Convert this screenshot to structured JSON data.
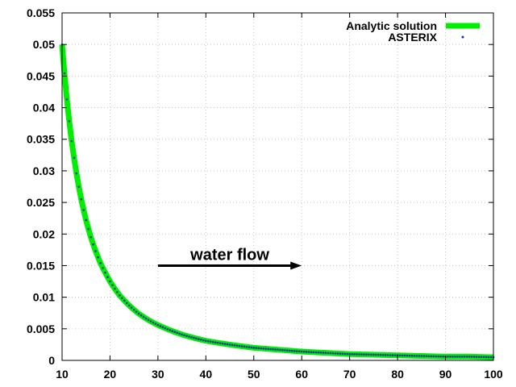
{
  "chart_data": {
    "type": "line",
    "title": "",
    "xlabel": "",
    "ylabel": "",
    "xlim": [
      10,
      100
    ],
    "ylim": [
      0,
      0.055
    ],
    "x_ticks": [
      10,
      20,
      30,
      40,
      50,
      60,
      70,
      80,
      90,
      100
    ],
    "y_ticks": [
      0,
      0.005,
      0.01,
      0.015,
      0.02,
      0.025,
      0.03,
      0.035,
      0.04,
      0.045,
      0.05,
      0.055
    ],
    "x_tick_labels": [
      "10",
      "20",
      "30",
      "40",
      "50",
      "60",
      "70",
      "80",
      "90",
      "100"
    ],
    "y_tick_labels": [
      "0",
      "0.005",
      "0.01",
      "0.015",
      "0.02",
      "0.025",
      "0.03",
      "0.035",
      "0.04",
      "0.045",
      "0.05",
      "0.055"
    ],
    "grid": true,
    "legend_position": "top-right",
    "series": [
      {
        "name": "Analytic solution",
        "style": "line",
        "color": "#00ee00",
        "x": [
          10,
          11,
          12,
          13,
          14,
          15,
          16,
          17,
          18,
          19,
          20,
          22,
          24,
          26,
          28,
          30,
          35,
          40,
          45,
          50,
          55,
          60,
          65,
          70,
          75,
          80,
          85,
          90,
          95,
          100
        ],
        "y": [
          0.05,
          0.0413,
          0.0347,
          0.0296,
          0.0255,
          0.0222,
          0.0195,
          0.0173,
          0.0154,
          0.0139,
          0.0125,
          0.0103,
          0.0087,
          0.0074,
          0.0064,
          0.0056,
          0.0041,
          0.0031,
          0.0025,
          0.002,
          0.0017,
          0.0014,
          0.0012,
          0.001,
          0.0009,
          0.0008,
          0.0007,
          0.0006,
          0.0006,
          0.0005
        ]
      },
      {
        "name": "ASTERIX",
        "style": "points",
        "color": "#1a2fb0",
        "x": [
          10,
          11,
          12,
          13,
          14,
          15,
          16,
          17,
          18,
          19,
          20,
          22,
          24,
          26,
          28,
          30,
          35,
          40,
          45,
          50,
          55,
          60,
          65,
          70,
          75,
          80,
          85,
          90,
          95,
          100
        ],
        "y": [
          0.05,
          0.0413,
          0.0347,
          0.0296,
          0.0255,
          0.0222,
          0.0195,
          0.0173,
          0.0154,
          0.0139,
          0.0125,
          0.0103,
          0.0087,
          0.0074,
          0.0064,
          0.0056,
          0.0041,
          0.0031,
          0.0025,
          0.002,
          0.0017,
          0.0014,
          0.0012,
          0.001,
          0.0009,
          0.0008,
          0.0007,
          0.0006,
          0.0006,
          0.0005
        ]
      }
    ],
    "annotations": [
      {
        "text": "water flow",
        "arrow_from": [
          30,
          0.015
        ],
        "arrow_to": [
          60,
          0.015
        ]
      }
    ]
  }
}
